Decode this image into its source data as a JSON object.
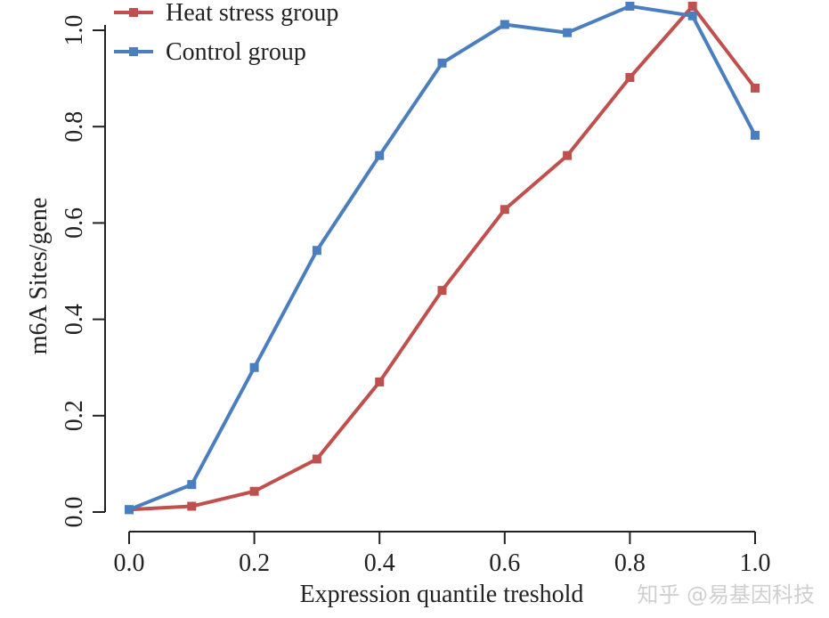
{
  "chart_data": {
    "type": "line",
    "title": "",
    "xlabel": "Expression quantile treshold",
    "ylabel": "m6A Sites/gene",
    "xlim": [
      0,
      1.0
    ],
    "ylim": [
      0,
      1.0
    ],
    "xticks": [
      "0.0",
      "0.2",
      "0.4",
      "0.6",
      "0.8",
      "1.0"
    ],
    "yticks": [
      "0.0",
      "0.2",
      "0.4",
      "0.6",
      "0.8",
      "1.0"
    ],
    "x": [
      0.0,
      0.1,
      0.2,
      0.3,
      0.4,
      0.5,
      0.6,
      0.7,
      0.8,
      0.9,
      1.0
    ],
    "series": [
      {
        "name": "Heat stress group",
        "color": "#c0504d",
        "values": [
          0.005,
          0.012,
          0.043,
          0.11,
          0.27,
          0.46,
          0.628,
          0.74,
          0.902,
          1.05,
          0.88
        ]
      },
      {
        "name": "Control group",
        "color": "#4a7ebf",
        "values": [
          0.005,
          0.057,
          0.3,
          0.543,
          0.74,
          0.932,
          1.012,
          0.995,
          1.05,
          1.03,
          0.782
        ]
      }
    ],
    "legend": "top-left",
    "grid": false
  },
  "watermark": "知乎 @易基因科技"
}
